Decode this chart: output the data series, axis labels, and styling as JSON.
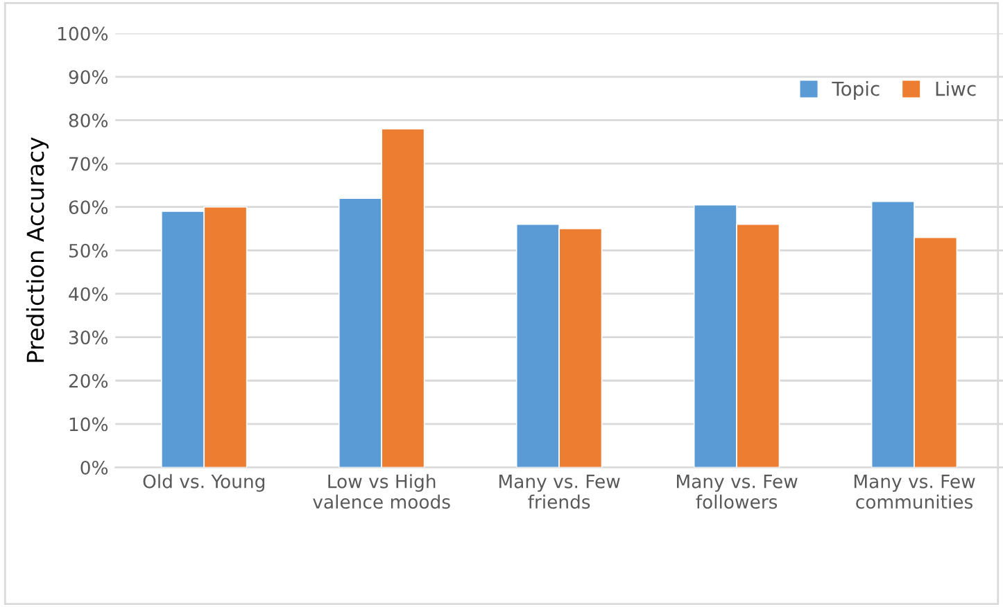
{
  "chart_data": {
    "type": "bar",
    "ylabel": "Prediction Accuracy",
    "categories": [
      "Old vs. Young",
      "Low vs High\nvalence moods",
      "Many vs. Few\nfriends",
      "Many vs. Few\nfollowers",
      "Many vs. Few\ncommunities"
    ],
    "series": [
      {
        "name": "Topic",
        "color": "#5b9bd5",
        "values": [
          59,
          62,
          56,
          60.5,
          61.3
        ]
      },
      {
        "name": "Liwc",
        "color": "#ed7d31",
        "values": [
          60,
          78,
          55,
          56,
          53
        ]
      }
    ],
    "ylim": [
      0,
      100
    ],
    "yticks": [
      {
        "value": 0,
        "label": "0%"
      },
      {
        "value": 10,
        "label": "10%"
      },
      {
        "value": 20,
        "label": "20%"
      },
      {
        "value": 30,
        "label": "30%"
      },
      {
        "value": 40,
        "label": "40%"
      },
      {
        "value": 50,
        "label": "50%"
      },
      {
        "value": 60,
        "label": "60%"
      },
      {
        "value": 70,
        "label": "70%"
      },
      {
        "value": 80,
        "label": "80%"
      },
      {
        "value": 90,
        "label": "90%"
      },
      {
        "value": 100,
        "label": "100%"
      }
    ],
    "grid": "y",
    "legend": "top right"
  }
}
